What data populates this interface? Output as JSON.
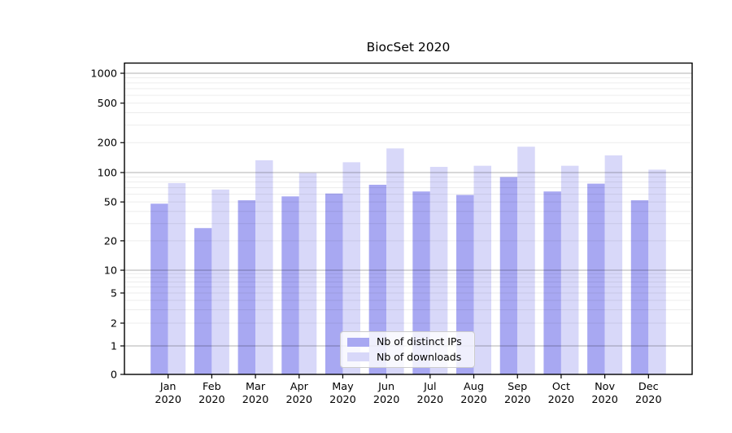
{
  "chart_data": {
    "type": "bar",
    "title": "BiocSet 2020",
    "categories": [
      "Jan 2020",
      "Feb 2020",
      "Mar 2020",
      "Apr 2020",
      "May 2020",
      "Jun 2020",
      "Jul 2020",
      "Aug 2020",
      "Sep 2020",
      "Oct 2020",
      "Nov 2020",
      "Dec 2020"
    ],
    "series": [
      {
        "name": "Nb of distinct IPs",
        "color": "#a8a8f2",
        "values": [
          48,
          27,
          52,
          57,
          61,
          75,
          64,
          59,
          90,
          64,
          77,
          52
        ]
      },
      {
        "name": "Nb of downloads",
        "color": "#d8d8f9",
        "values": [
          78,
          67,
          133,
          99,
          127,
          175,
          114,
          117,
          182,
          117,
          149,
          107
        ]
      }
    ],
    "xlabel": "",
    "ylabel": "",
    "yscale": "symlog",
    "yticks": [
      0,
      1,
      2,
      5,
      10,
      20,
      50,
      100,
      200,
      500,
      1000
    ],
    "ylim": [
      0,
      1260
    ],
    "grid": "horizontal, log minors",
    "legend_position": "lower center",
    "colors": {
      "major_gridline": "rgba(0,0,0,0.30)",
      "minor_gridline": "rgba(0,0,0,0.075)",
      "spine": "#000000",
      "text": "#000000"
    }
  }
}
